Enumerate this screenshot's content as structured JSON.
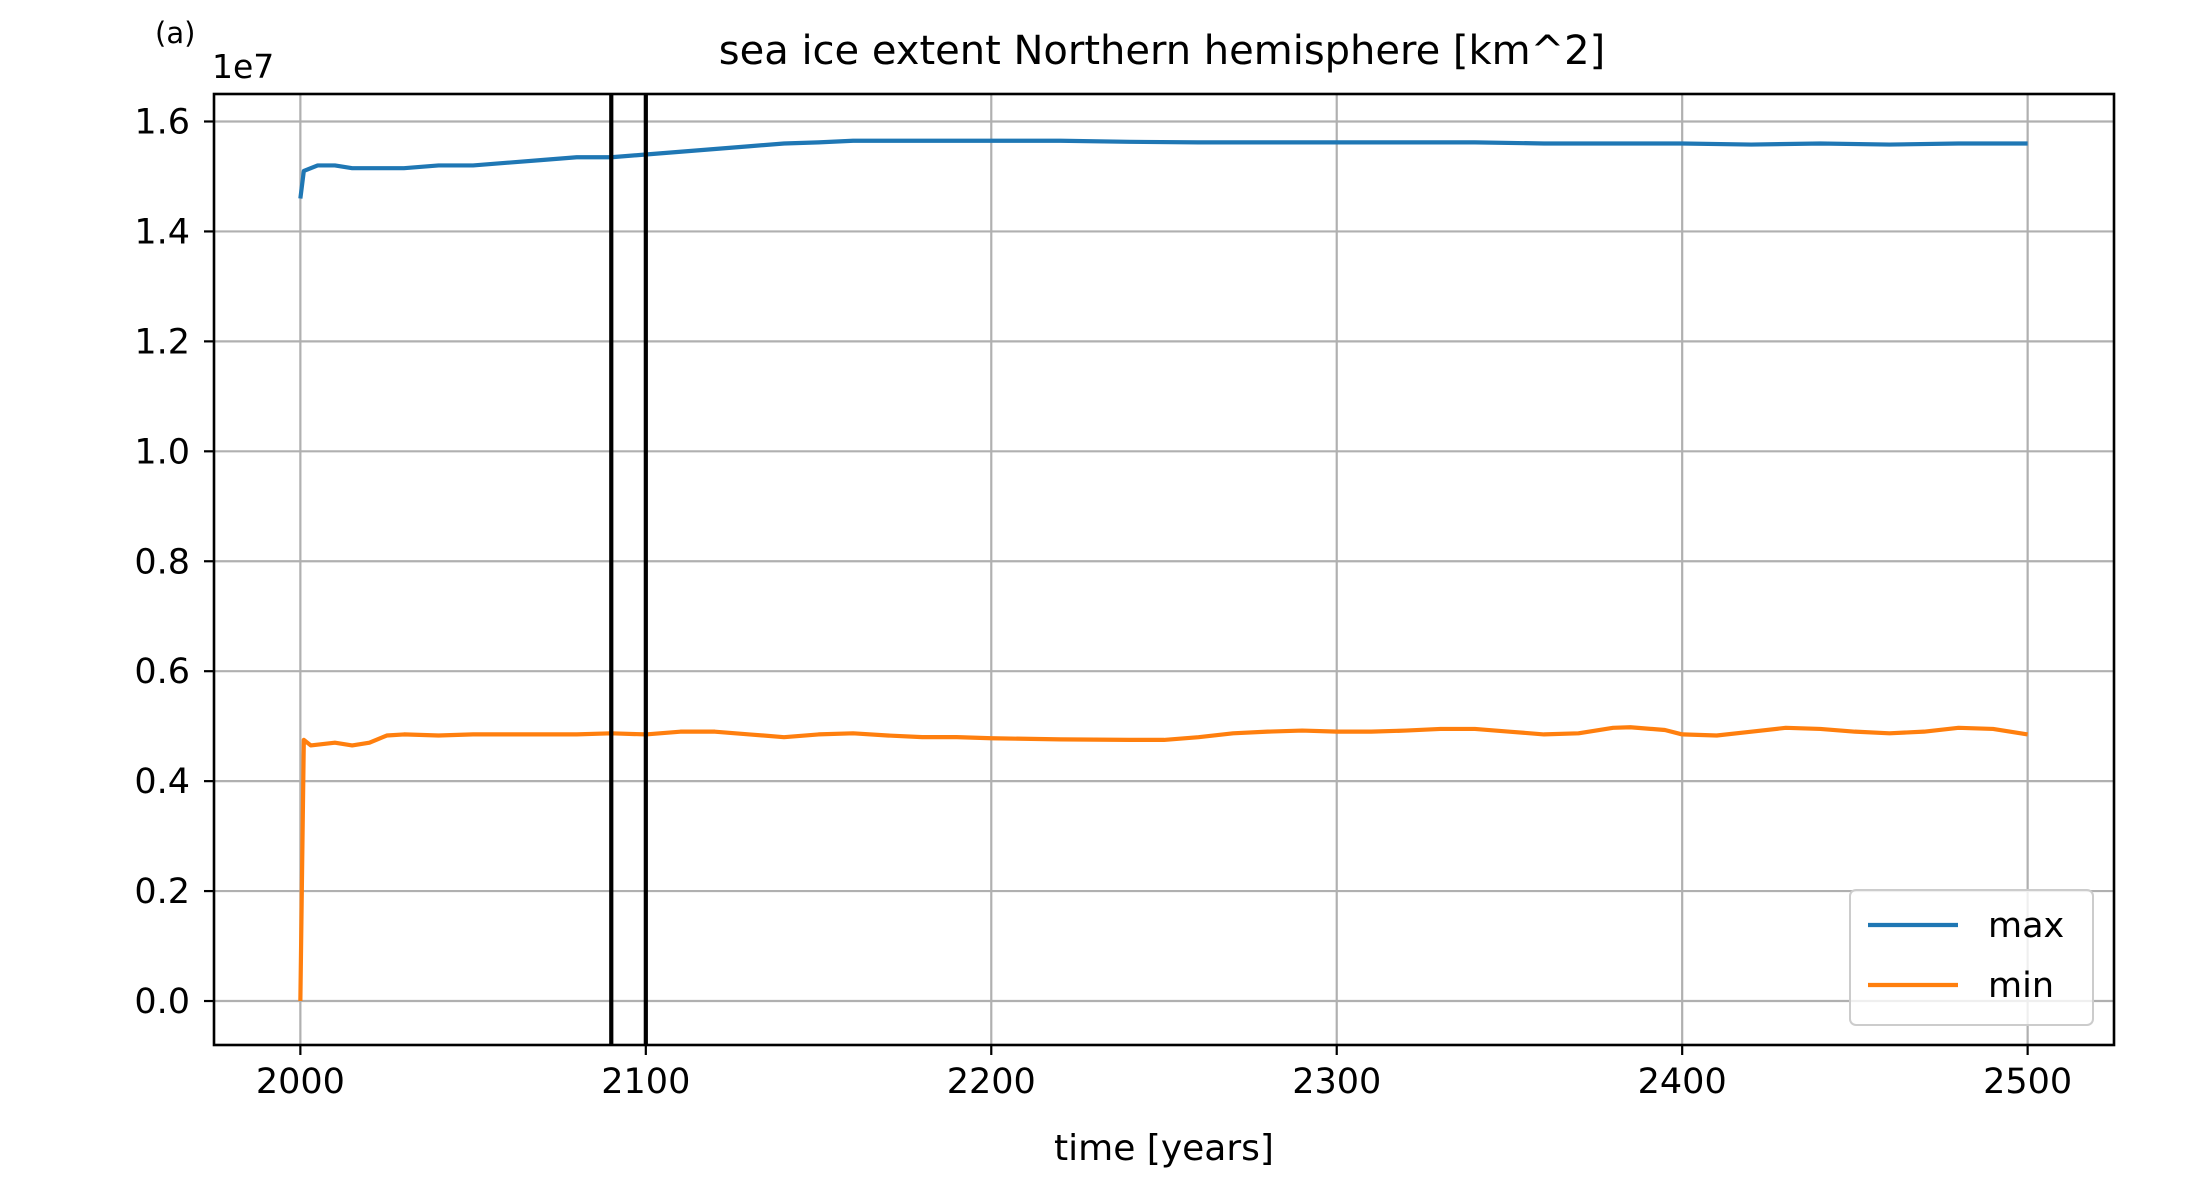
{
  "chart_data": {
    "type": "line",
    "panel_label": "(a)",
    "title": "sea ice extent Northern hemisphere [km^2]",
    "xlabel": "time [years]",
    "ylabel": "",
    "y_offset_label": "1e7",
    "xlim": [
      1975,
      2525
    ],
    "ylim": [
      -0.08,
      1.65
    ],
    "xticks": [
      2000,
      2100,
      2200,
      2300,
      2400,
      2500
    ],
    "xtick_labels": [
      "2000",
      "2100",
      "2200",
      "2300",
      "2400",
      "2500"
    ],
    "yticks": [
      0.0,
      0.2,
      0.4,
      0.6,
      0.8,
      1.0,
      1.2,
      1.4,
      1.6
    ],
    "ytick_labels": [
      "0.0",
      "0.2",
      "0.4",
      "0.6",
      "0.8",
      "1.0",
      "1.2",
      "1.4",
      "1.6"
    ],
    "grid": true,
    "legend_position": "lower-right",
    "vertical_lines": [
      2090,
      2100
    ],
    "series": [
      {
        "name": "max",
        "color": "#1f77b4",
        "points": [
          [
            2000,
            1.46
          ],
          [
            2001,
            1.51
          ],
          [
            2003,
            1.515
          ],
          [
            2005,
            1.52
          ],
          [
            2010,
            1.52
          ],
          [
            2015,
            1.515
          ],
          [
            2020,
            1.515
          ],
          [
            2025,
            1.515
          ],
          [
            2030,
            1.515
          ],
          [
            2040,
            1.52
          ],
          [
            2050,
            1.52
          ],
          [
            2060,
            1.525
          ],
          [
            2070,
            1.53
          ],
          [
            2080,
            1.535
          ],
          [
            2090,
            1.535
          ],
          [
            2100,
            1.54
          ],
          [
            2110,
            1.545
          ],
          [
            2120,
            1.55
          ],
          [
            2130,
            1.555
          ],
          [
            2140,
            1.56
          ],
          [
            2150,
            1.562
          ],
          [
            2160,
            1.565
          ],
          [
            2170,
            1.565
          ],
          [
            2180,
            1.565
          ],
          [
            2190,
            1.565
          ],
          [
            2200,
            1.565
          ],
          [
            2220,
            1.565
          ],
          [
            2240,
            1.563
          ],
          [
            2260,
            1.562
          ],
          [
            2280,
            1.562
          ],
          [
            2300,
            1.562
          ],
          [
            2320,
            1.562
          ],
          [
            2340,
            1.562
          ],
          [
            2360,
            1.56
          ],
          [
            2380,
            1.56
          ],
          [
            2400,
            1.56
          ],
          [
            2420,
            1.558
          ],
          [
            2440,
            1.56
          ],
          [
            2460,
            1.558
          ],
          [
            2480,
            1.56
          ],
          [
            2500,
            1.56
          ]
        ]
      },
      {
        "name": "min",
        "color": "#ff7f0e",
        "points": [
          [
            2000,
            0.0
          ],
          [
            2001,
            0.475
          ],
          [
            2003,
            0.465
          ],
          [
            2010,
            0.47
          ],
          [
            2015,
            0.465
          ],
          [
            2020,
            0.47
          ],
          [
            2025,
            0.483
          ],
          [
            2030,
            0.485
          ],
          [
            2040,
            0.483
          ],
          [
            2050,
            0.485
          ],
          [
            2060,
            0.485
          ],
          [
            2070,
            0.485
          ],
          [
            2080,
            0.485
          ],
          [
            2090,
            0.487
          ],
          [
            2100,
            0.485
          ],
          [
            2110,
            0.49
          ],
          [
            2120,
            0.49
          ],
          [
            2130,
            0.485
          ],
          [
            2140,
            0.48
          ],
          [
            2150,
            0.485
          ],
          [
            2160,
            0.487
          ],
          [
            2170,
            0.483
          ],
          [
            2180,
            0.48
          ],
          [
            2190,
            0.48
          ],
          [
            2200,
            0.478
          ],
          [
            2220,
            0.476
          ],
          [
            2240,
            0.475
          ],
          [
            2250,
            0.475
          ],
          [
            2260,
            0.48
          ],
          [
            2270,
            0.487
          ],
          [
            2280,
            0.49
          ],
          [
            2290,
            0.492
          ],
          [
            2300,
            0.49
          ],
          [
            2310,
            0.49
          ],
          [
            2320,
            0.492
          ],
          [
            2330,
            0.495
          ],
          [
            2340,
            0.495
          ],
          [
            2350,
            0.49
          ],
          [
            2360,
            0.485
          ],
          [
            2370,
            0.487
          ],
          [
            2380,
            0.497
          ],
          [
            2385,
            0.498
          ],
          [
            2395,
            0.493
          ],
          [
            2400,
            0.485
          ],
          [
            2410,
            0.483
          ],
          [
            2420,
            0.49
          ],
          [
            2430,
            0.497
          ],
          [
            2440,
            0.495
          ],
          [
            2450,
            0.49
          ],
          [
            2460,
            0.487
          ],
          [
            2470,
            0.49
          ],
          [
            2480,
            0.497
          ],
          [
            2490,
            0.495
          ],
          [
            2500,
            0.485
          ]
        ]
      }
    ]
  }
}
